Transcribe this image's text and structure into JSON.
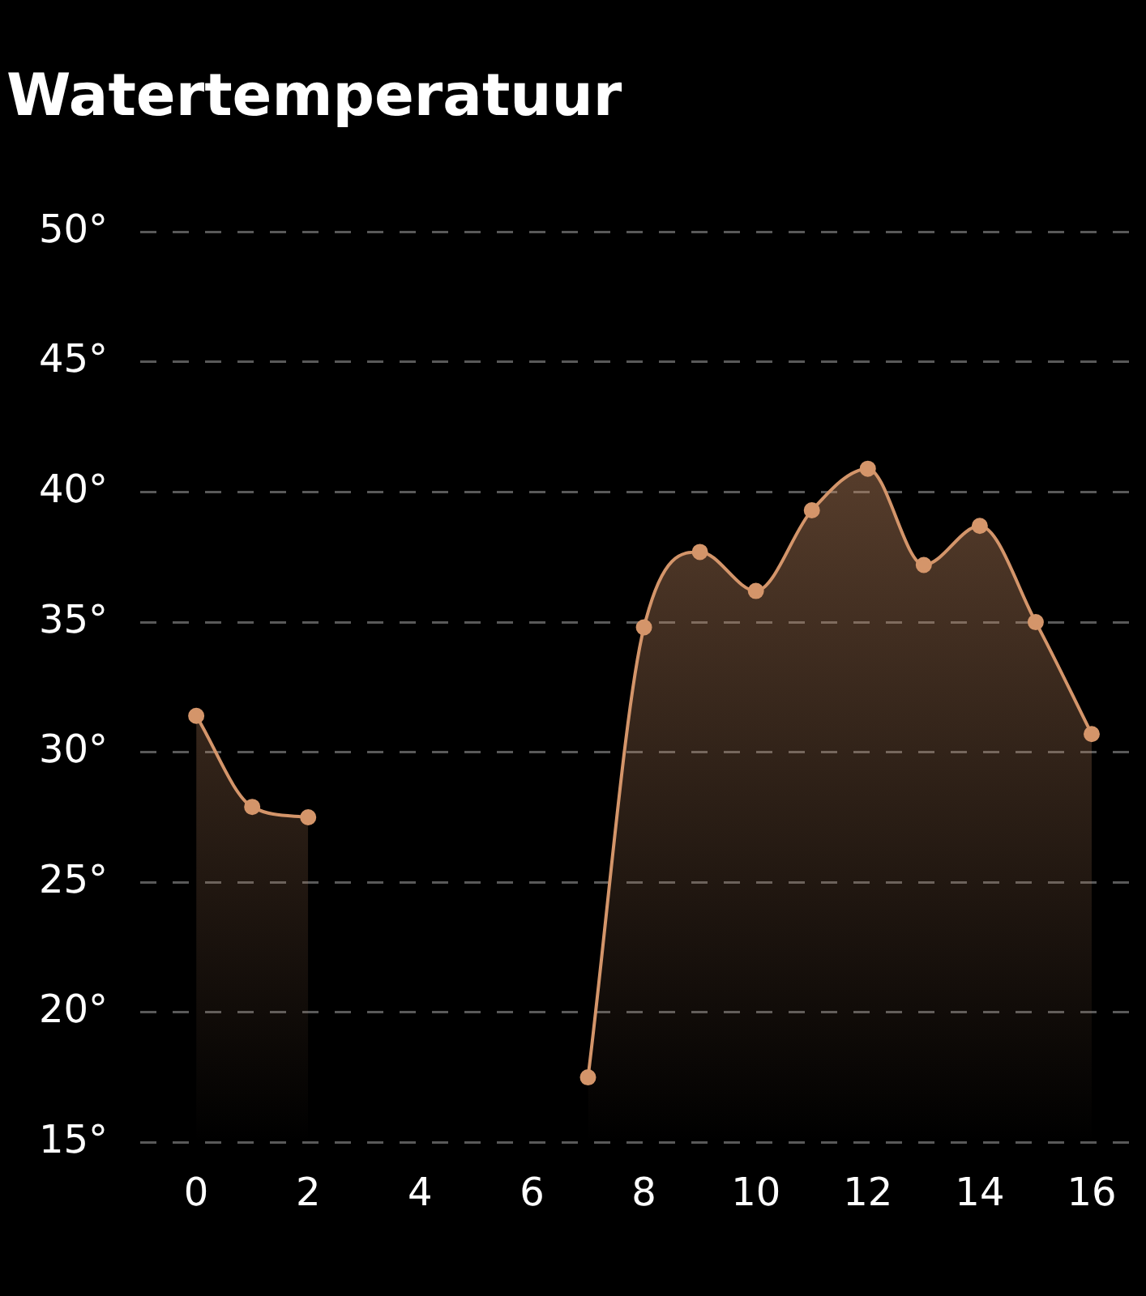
{
  "chart_data": {
    "type": "area",
    "title": "Watertemperatuur",
    "x": [
      0,
      1,
      2,
      3,
      4,
      5,
      6,
      7,
      8,
      9,
      10,
      11,
      12,
      13,
      14,
      15,
      16
    ],
    "series": [
      {
        "color": "#d4956a",
        "values": [
          31.4,
          27.9,
          27.5,
          null,
          null,
          null,
          null,
          17.5,
          34.8,
          37.7,
          36.2,
          39.3,
          40.9,
          37.2,
          38.7,
          35.0,
          30.7
        ]
      }
    ],
    "xlim": [
      -1,
      16.7
    ],
    "xticks": [
      0,
      2,
      4,
      6,
      8,
      10,
      12,
      14,
      16
    ],
    "ylim": [
      15,
      50
    ],
    "yticks": [
      {
        "value": 15,
        "label": "15°"
      },
      {
        "value": 20,
        "label": "20°"
      },
      {
        "value": 25,
        "label": "25°"
      },
      {
        "value": 30,
        "label": "30°"
      },
      {
        "value": 35,
        "label": "35°"
      },
      {
        "value": 40,
        "label": "40°"
      },
      {
        "value": 45,
        "label": "45°"
      },
      {
        "value": 50,
        "label": "50°"
      }
    ],
    "grid": "y",
    "legend": false,
    "marker": "circle",
    "line_style": "solid"
  }
}
